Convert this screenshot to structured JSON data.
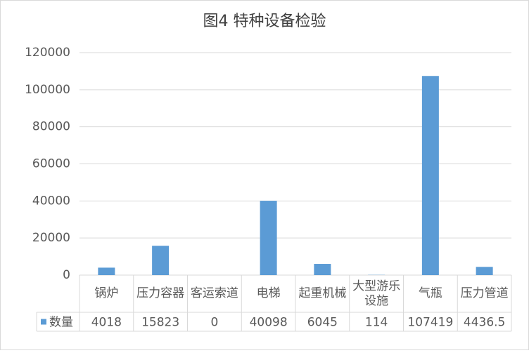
{
  "chart_data": {
    "type": "bar",
    "title": "图4  特种设备检验",
    "categories": [
      "锅炉",
      "压力容器",
      "客运索道",
      "电梯",
      "起重机械",
      "大型游乐设施",
      "气瓶",
      "压力管道"
    ],
    "series": [
      {
        "name": "数量",
        "color": "#5b9bd5",
        "values": [
          4018,
          15823,
          0,
          40098,
          6045,
          114,
          107419,
          4436.5
        ]
      }
    ],
    "ylim": [
      0,
      120000
    ],
    "yticks": [
      0,
      20000,
      40000,
      60000,
      80000,
      100000,
      120000
    ],
    "grid": true,
    "data_table": true
  }
}
